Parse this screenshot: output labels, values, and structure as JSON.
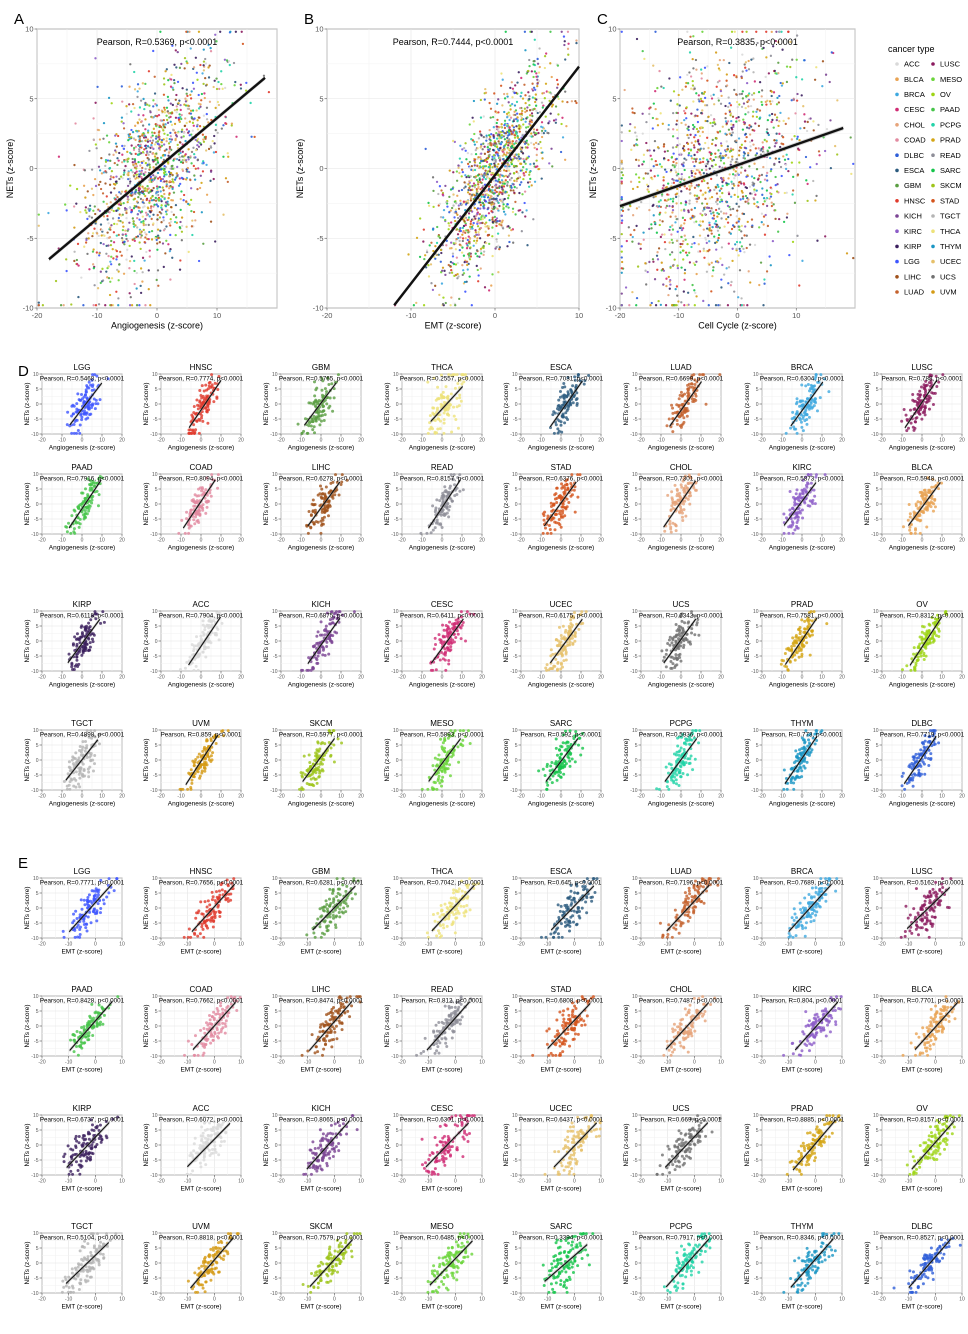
{
  "panel_letters": {
    "A": "A",
    "B": "B",
    "C": "C",
    "D": "D",
    "E": "E"
  },
  "legend": {
    "title": "cancer type",
    "items": [
      {
        "name": "ACC",
        "color": "#d9d9d9"
      },
      {
        "name": "BLCA",
        "color": "#e9a352"
      },
      {
        "name": "BRCA",
        "color": "#3ea9e0"
      },
      {
        "name": "CESC",
        "color": "#d02c74"
      },
      {
        "name": "CHOL",
        "color": "#e6a47a"
      },
      {
        "name": "COAD",
        "color": "#e28aa0"
      },
      {
        "name": "DLBC",
        "color": "#2e5ed8"
      },
      {
        "name": "ESCA",
        "color": "#2b5a7e"
      },
      {
        "name": "GBM",
        "color": "#5a9e42"
      },
      {
        "name": "HNSC",
        "color": "#e03a2c"
      },
      {
        "name": "KICH",
        "color": "#7b4494"
      },
      {
        "name": "KIRC",
        "color": "#8c5cc8"
      },
      {
        "name": "KIRP",
        "color": "#3b1f5e"
      },
      {
        "name": "LGG",
        "color": "#3d55ff"
      },
      {
        "name": "LIHC",
        "color": "#a0521c"
      },
      {
        "name": "LUAD",
        "color": "#c4622d"
      },
      {
        "name": "LUSC",
        "color": "#8b1a5e"
      },
      {
        "name": "MESO",
        "color": "#6ad43a"
      },
      {
        "name": "OV",
        "color": "#9ed414"
      },
      {
        "name": "PAAD",
        "color": "#46c44a"
      },
      {
        "name": "PCPG",
        "color": "#22d3a8"
      },
      {
        "name": "PRAD",
        "color": "#d4a514"
      },
      {
        "name": "READ",
        "color": "#8e8e98"
      },
      {
        "name": "SARC",
        "color": "#14c44a"
      },
      {
        "name": "SKCM",
        "color": "#9ec41a"
      },
      {
        "name": "STAD",
        "color": "#d4541c"
      },
      {
        "name": "TGCT",
        "color": "#b4b4b4"
      },
      {
        "name": "THCA",
        "color": "#ede27a"
      },
      {
        "name": "THYM",
        "color": "#1a96c4"
      },
      {
        "name": "UCEC",
        "color": "#e6c06a"
      },
      {
        "name": "UCS",
        "color": "#707070"
      },
      {
        "name": "UVM",
        "color": "#d49a14"
      }
    ]
  },
  "chart_data": [
    {
      "panel": "A",
      "type": "scatter",
      "title": "Pearson, R=0.5369, p<0.0001",
      "xlabel": "Angiogenesis (z-score)",
      "ylabel": "NETs (z-score)",
      "xlim": [
        -20,
        20
      ],
      "ylim": [
        -10,
        10
      ],
      "xticks": [
        -20,
        -10,
        0,
        10
      ],
      "yticks": [
        -10,
        -5,
        0,
        5,
        10
      ],
      "fit": {
        "x": [
          -18,
          18
        ],
        "y": [
          -6.5,
          6.5
        ]
      },
      "grid": true,
      "legend_position": "right"
    },
    {
      "panel": "B",
      "type": "scatter",
      "title": "Pearson, R=0.7444, p<0.0001",
      "xlabel": "EMT (z-score)",
      "ylabel": "NETs (z-score)",
      "xlim": [
        -20,
        10
      ],
      "ylim": [
        -10,
        10
      ],
      "xticks": [
        -20,
        -10,
        0,
        10
      ],
      "yticks": [
        -10,
        -5,
        0,
        5,
        10
      ],
      "fit": {
        "x": [
          -12,
          10
        ],
        "y": [
          -9.8,
          7.3
        ]
      },
      "grid": true
    },
    {
      "panel": "C",
      "type": "scatter",
      "title": "Pearson, R=0.3835, p<0.0001",
      "xlabel": "Cell Cycle (z-score)",
      "ylabel": "NETs (z-score)",
      "xlim": [
        -20,
        20
      ],
      "ylim": [
        -10,
        10
      ],
      "xticks": [
        -20,
        -10,
        0,
        10
      ],
      "yticks": [
        -10,
        -5,
        0,
        5,
        10
      ],
      "fit": {
        "x": [
          -20,
          18
        ],
        "y": [
          -2.7,
          2.9
        ]
      },
      "grid": true
    },
    {
      "panel": "D",
      "type": "scatter",
      "xlabel": "Angiogenesis (z-score)",
      "ylabel": "NETs (z-score)",
      "xticks": [
        -20,
        -10,
        0,
        10,
        20
      ],
      "yticks": [
        -10,
        -5,
        0,
        5,
        10
      ],
      "subplots": [
        {
          "name": "LGG",
          "r": "Pearson, R=0.5468, p<0.0001"
        },
        {
          "name": "HNSC",
          "r": "Pearson, R=0.7774, p<0.0001"
        },
        {
          "name": "GBM",
          "r": "Pearson, R=0.5765, p<0.0001"
        },
        {
          "name": "THCA",
          "r": "Pearson, R=0.2557, p<0.0001"
        },
        {
          "name": "ESCA",
          "r": "Pearson, R=0.7031, p<0.0001"
        },
        {
          "name": "LUAD",
          "r": "Pearson, R=0.6699, p<0.0001"
        },
        {
          "name": "BRCA",
          "r": "Pearson, R=0.6304, p<0.0001"
        },
        {
          "name": "LUSC",
          "r": "Pearson, R=0.788, p<0.0001"
        },
        {
          "name": "PAAD",
          "r": "Pearson, R=0.7916, p<0.0001"
        },
        {
          "name": "COAD",
          "r": "Pearson, R=0.8094, p<0.0001"
        },
        {
          "name": "LIHC",
          "r": "Pearson, R=0.6278, p<0.0001"
        },
        {
          "name": "READ",
          "r": "Pearson, R=0.8157, p<0.0001"
        },
        {
          "name": "STAD",
          "r": "Pearson, R=0.6376, p<0.0001"
        },
        {
          "name": "CHOL",
          "r": "Pearson, R=0.7301, p<0.0001"
        },
        {
          "name": "KIRC",
          "r": "Pearson, R=0.5873, p<0.0001"
        },
        {
          "name": "BLCA",
          "r": "Pearson, R=0.5948, p<0.0001"
        },
        {
          "name": "KIRP",
          "r": "Pearson, R=0.6118, p<0.0001"
        },
        {
          "name": "ACC",
          "r": "Pearson, R=0.7904, p<0.0001"
        },
        {
          "name": "KICH",
          "r": "Pearson, R=0.6875, p<0.0001"
        },
        {
          "name": "CESC",
          "r": "Pearson, R=0.6411, p<0.0001"
        },
        {
          "name": "UCEC",
          "r": "Pearson, R=0.6175, p<0.0001"
        },
        {
          "name": "UCS",
          "r": "Pearson, R=0.6342, p<0.0001"
        },
        {
          "name": "PRAD",
          "r": "Pearson, R=0.7581, p<0.0001"
        },
        {
          "name": "OV",
          "r": "Pearson, R=0.8312, p<0.0001"
        },
        {
          "name": "TGCT",
          "r": "Pearson, R=0.4898, p<0.0001"
        },
        {
          "name": "UVM",
          "r": "Pearson, R=0.859, p<0.0001"
        },
        {
          "name": "SKCM",
          "r": "Pearson, R=0.5977, p<0.0001"
        },
        {
          "name": "MESO",
          "r": "Pearson, R=0.5893, p<0.0001"
        },
        {
          "name": "SARC",
          "r": "Pearson, R=0.592, p<0.0001"
        },
        {
          "name": "PCPG",
          "r": "Pearson, R=0.5936, p<0.0001"
        },
        {
          "name": "THYM",
          "r": "Pearson, R=0.773, p<0.0001"
        },
        {
          "name": "DLBC",
          "r": "Pearson, R=0.7719, p<0.0001"
        }
      ]
    },
    {
      "panel": "E",
      "type": "scatter",
      "xlabel": "EMT (z-score)",
      "ylabel": "NETs (z-score)",
      "xticks": [
        -20,
        -10,
        0,
        10
      ],
      "yticks": [
        -10,
        -5,
        0,
        5,
        10
      ],
      "subplots": [
        {
          "name": "LGG",
          "r": "Pearson, R=0.7771, p<0.0001"
        },
        {
          "name": "HNSC",
          "r": "Pearson, R=0.7656, p<0.0001"
        },
        {
          "name": "GBM",
          "r": "Pearson, R=0.6281, p<0.0001"
        },
        {
          "name": "THCA",
          "r": "Pearson, R=0.7042, p<0.0001"
        },
        {
          "name": "ESCA",
          "r": "Pearson, R=0.645, p<0.0001"
        },
        {
          "name": "LUAD",
          "r": "Pearson, R=0.7196, p<0.0001"
        },
        {
          "name": "BRCA",
          "r": "Pearson, R=0.7689, p<0.0001"
        },
        {
          "name": "LUSC",
          "r": "Pearson, R=0.5162, p<0.0001"
        },
        {
          "name": "PAAD",
          "r": "Pearson, R=0.8428, p<0.0001"
        },
        {
          "name": "COAD",
          "r": "Pearson, R=0.7662, p<0.0001"
        },
        {
          "name": "LIHC",
          "r": "Pearson, R=0.8474, p<0.0001"
        },
        {
          "name": "READ",
          "r": "Pearson, R=0.812, p<0.0001"
        },
        {
          "name": "STAD",
          "r": "Pearson, R=0.6808, p<0.0001"
        },
        {
          "name": "CHOL",
          "r": "Pearson, R=0.7487, p<0.0001"
        },
        {
          "name": "KIRC",
          "r": "Pearson, R=0.804, p<0.0001"
        },
        {
          "name": "BLCA",
          "r": "Pearson, R=0.7701, p<0.0001"
        },
        {
          "name": "KIRP",
          "r": "Pearson, R=0.6737, p<0.0001"
        },
        {
          "name": "ACC",
          "r": "Pearson, R=0.6072, p<0.0001"
        },
        {
          "name": "KICH",
          "r": "Pearson, R=0.8065, p<0.0001"
        },
        {
          "name": "CESC",
          "r": "Pearson, R=0.6301, p<0.0001"
        },
        {
          "name": "UCEC",
          "r": "Pearson, R=0.6437, p<0.0001"
        },
        {
          "name": "UCS",
          "r": "Pearson, R=0.669, p<0.0001"
        },
        {
          "name": "PRAD",
          "r": "Pearson, R=0.8885, p<0.0001"
        },
        {
          "name": "OV",
          "r": "Pearson, R=0.8157, p<0.0001"
        },
        {
          "name": "TGCT",
          "r": "Pearson, R=0.5104, p<0.0001"
        },
        {
          "name": "UVM",
          "r": "Pearson, R=0.8818, p<0.0001"
        },
        {
          "name": "SKCM",
          "r": "Pearson, R=0.7579, p<0.0001"
        },
        {
          "name": "MESO",
          "r": "Pearson, R=0.6485, p<0.0001"
        },
        {
          "name": "SARC",
          "r": "Pearson, R=0.3394, p<0.0001"
        },
        {
          "name": "PCPG",
          "r": "Pearson, R=0.7917, p<0.0001"
        },
        {
          "name": "THYM",
          "r": "Pearson, R=0.8346, p<0.0001"
        },
        {
          "name": "DLBC",
          "r": "Pearson, R=0.8527, p<0.0001"
        }
      ]
    }
  ]
}
